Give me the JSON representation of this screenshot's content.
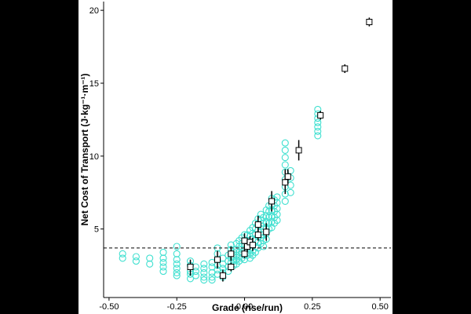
{
  "chart_data": {
    "type": "scatter",
    "xlabel": "Grade (rise/run)",
    "ylabel": "Net Cost of Transport (J·kg⁻¹·m⁻¹)",
    "xlim": [
      -0.52,
      0.54
    ],
    "ylim": [
      0.3,
      20.6
    ],
    "x_ticks": [
      -0.5,
      -0.25,
      0.0,
      0.25,
      0.5
    ],
    "x_tick_labels": [
      "-0.50",
      "-0.25",
      "0.00",
      "0.25",
      "0.50"
    ],
    "y_ticks": [
      5,
      10,
      15,
      20
    ],
    "y_tick_labels": [
      "5",
      "10",
      "15",
      "20"
    ],
    "reference_line": {
      "y": 3.7,
      "style": "dashed"
    },
    "grid": false,
    "colors": {
      "individual": "#40E0D0",
      "summary": "#000000",
      "reference_line": "#333333"
    },
    "series": [
      {
        "kind": "individual",
        "points": [
          [
            -0.45,
            3.3
          ],
          [
            -0.45,
            3.0
          ],
          [
            -0.4,
            3.1
          ],
          [
            -0.4,
            2.8
          ],
          [
            -0.35,
            3.0
          ],
          [
            -0.35,
            2.6
          ],
          [
            -0.3,
            3.4
          ],
          [
            -0.3,
            3.0
          ],
          [
            -0.3,
            2.7
          ],
          [
            -0.3,
            2.4
          ],
          [
            -0.3,
            2.1
          ],
          [
            -0.25,
            3.8
          ],
          [
            -0.25,
            3.3
          ],
          [
            -0.25,
            2.9
          ],
          [
            -0.25,
            2.6
          ],
          [
            -0.25,
            2.3
          ],
          [
            -0.25,
            2.0
          ],
          [
            -0.25,
            1.8
          ],
          [
            -0.2,
            2.8
          ],
          [
            -0.2,
            2.5
          ],
          [
            -0.2,
            2.1
          ],
          [
            -0.2,
            1.9
          ],
          [
            -0.2,
            1.6
          ],
          [
            -0.18,
            2.4
          ],
          [
            -0.18,
            2.1
          ],
          [
            -0.18,
            1.8
          ],
          [
            -0.15,
            2.6
          ],
          [
            -0.15,
            2.3
          ],
          [
            -0.15,
            2.0
          ],
          [
            -0.15,
            1.7
          ],
          [
            -0.15,
            1.5
          ],
          [
            -0.12,
            2.7
          ],
          [
            -0.12,
            2.4
          ],
          [
            -0.12,
            2.0
          ],
          [
            -0.12,
            1.7
          ],
          [
            -0.12,
            1.5
          ],
          [
            -0.1,
            3.7
          ],
          [
            -0.1,
            3.3
          ],
          [
            -0.1,
            2.9
          ],
          [
            -0.1,
            2.5
          ],
          [
            -0.1,
            2.2
          ],
          [
            -0.1,
            1.9
          ],
          [
            -0.08,
            3.0
          ],
          [
            -0.08,
            2.6
          ],
          [
            -0.08,
            2.3
          ],
          [
            -0.08,
            2.0
          ],
          [
            -0.08,
            1.7
          ],
          [
            -0.06,
            3.2
          ],
          [
            -0.06,
            2.8
          ],
          [
            -0.06,
            2.4
          ],
          [
            -0.06,
            2.1
          ],
          [
            -0.05,
            3.9
          ],
          [
            -0.05,
            3.6
          ],
          [
            -0.05,
            3.3
          ],
          [
            -0.05,
            3.0
          ],
          [
            -0.05,
            2.7
          ],
          [
            -0.05,
            2.4
          ],
          [
            -0.04,
            3.4
          ],
          [
            -0.04,
            3.1
          ],
          [
            -0.04,
            2.8
          ],
          [
            -0.04,
            2.5
          ],
          [
            -0.03,
            4.0
          ],
          [
            -0.03,
            3.6
          ],
          [
            -0.03,
            3.2
          ],
          [
            -0.03,
            2.9
          ],
          [
            -0.03,
            2.6
          ],
          [
            -0.02,
            4.2
          ],
          [
            -0.02,
            3.8
          ],
          [
            -0.02,
            3.4
          ],
          [
            -0.02,
            3.1
          ],
          [
            -0.02,
            2.8
          ],
          [
            -0.01,
            4.4
          ],
          [
            -0.01,
            4.0
          ],
          [
            -0.01,
            3.6
          ],
          [
            -0.01,
            3.3
          ],
          [
            -0.01,
            3.0
          ],
          [
            0.0,
            4.6
          ],
          [
            0.0,
            4.2
          ],
          [
            0.0,
            3.8
          ],
          [
            0.0,
            3.5
          ],
          [
            0.0,
            3.2
          ],
          [
            0.0,
            2.9
          ],
          [
            0.01,
            4.6
          ],
          [
            0.01,
            4.2
          ],
          [
            0.01,
            3.9
          ],
          [
            0.01,
            3.5
          ],
          [
            0.01,
            3.2
          ],
          [
            0.02,
            4.9
          ],
          [
            0.02,
            4.5
          ],
          [
            0.02,
            4.1
          ],
          [
            0.02,
            3.7
          ],
          [
            0.02,
            3.3
          ],
          [
            0.02,
            3.0
          ],
          [
            0.03,
            5.1
          ],
          [
            0.03,
            4.7
          ],
          [
            0.03,
            4.3
          ],
          [
            0.03,
            3.9
          ],
          [
            0.03,
            3.5
          ],
          [
            0.03,
            3.2
          ],
          [
            0.04,
            5.4
          ],
          [
            0.04,
            5.0
          ],
          [
            0.04,
            4.6
          ],
          [
            0.04,
            4.2
          ],
          [
            0.04,
            3.8
          ],
          [
            0.04,
            3.4
          ],
          [
            0.05,
            5.7
          ],
          [
            0.05,
            5.3
          ],
          [
            0.05,
            4.9
          ],
          [
            0.05,
            4.5
          ],
          [
            0.05,
            4.1
          ],
          [
            0.05,
            3.7
          ],
          [
            0.06,
            6.0
          ],
          [
            0.06,
            5.6
          ],
          [
            0.06,
            5.2
          ],
          [
            0.06,
            4.8
          ],
          [
            0.06,
            4.4
          ],
          [
            0.06,
            4.0
          ],
          [
            0.07,
            5.8
          ],
          [
            0.07,
            5.4
          ],
          [
            0.07,
            5.0
          ],
          [
            0.07,
            4.6
          ],
          [
            0.07,
            4.2
          ],
          [
            0.07,
            3.8
          ],
          [
            0.08,
            6.3
          ],
          [
            0.08,
            5.9
          ],
          [
            0.08,
            5.5
          ],
          [
            0.08,
            5.1
          ],
          [
            0.08,
            4.7
          ],
          [
            0.08,
            4.3
          ],
          [
            0.09,
            6.6
          ],
          [
            0.09,
            6.2
          ],
          [
            0.09,
            5.8
          ],
          [
            0.09,
            5.4
          ],
          [
            0.09,
            5.0
          ],
          [
            0.1,
            7.1
          ],
          [
            0.1,
            6.7
          ],
          [
            0.1,
            6.3
          ],
          [
            0.1,
            5.9
          ],
          [
            0.1,
            5.5
          ],
          [
            0.1,
            5.1
          ],
          [
            0.11,
            7.0
          ],
          [
            0.11,
            6.6
          ],
          [
            0.11,
            6.2
          ],
          [
            0.11,
            5.8
          ],
          [
            0.11,
            5.4
          ],
          [
            0.12,
            7.2
          ],
          [
            0.12,
            6.8
          ],
          [
            0.12,
            6.4
          ],
          [
            0.12,
            6.0
          ],
          [
            0.12,
            5.6
          ],
          [
            0.15,
            10.9
          ],
          [
            0.15,
            10.4
          ],
          [
            0.15,
            9.9
          ],
          [
            0.15,
            9.4
          ],
          [
            0.15,
            8.9
          ],
          [
            0.15,
            8.4
          ],
          [
            0.15,
            7.9
          ],
          [
            0.15,
            7.4
          ],
          [
            0.15,
            6.9
          ],
          [
            0.17,
            9.0
          ],
          [
            0.17,
            8.5
          ],
          [
            0.17,
            8.0
          ],
          [
            0.17,
            7.5
          ],
          [
            0.27,
            13.2
          ],
          [
            0.27,
            12.9
          ],
          [
            0.27,
            12.6
          ],
          [
            0.27,
            12.3
          ],
          [
            0.27,
            12.0
          ],
          [
            0.27,
            11.7
          ],
          [
            0.27,
            11.4
          ]
        ]
      },
      {
        "kind": "mean",
        "points": [
          {
            "x": -0.2,
            "y": 2.4,
            "lo": 1.8,
            "hi": 2.9
          },
          {
            "x": -0.1,
            "y": 2.9,
            "lo": 2.3,
            "hi": 3.5
          },
          {
            "x": -0.08,
            "y": 1.8,
            "lo": 1.4,
            "hi": 2.2
          },
          {
            "x": -0.05,
            "y": 3.3,
            "lo": 2.8,
            "hi": 3.8
          },
          {
            "x": -0.05,
            "y": 2.4,
            "lo": 2.1,
            "hi": 2.7
          },
          {
            "x": 0.0,
            "y": 4.2,
            "lo": 3.7,
            "hi": 4.7
          },
          {
            "x": 0.0,
            "y": 3.3,
            "lo": 3.0,
            "hi": 3.7
          },
          {
            "x": 0.01,
            "y": 3.8,
            "lo": 3.4,
            "hi": 4.3
          },
          {
            "x": 0.02,
            "y": 4.1,
            "lo": 3.7,
            "hi": 4.5
          },
          {
            "x": 0.03,
            "y": 3.9,
            "lo": 3.5,
            "hi": 4.4
          },
          {
            "x": 0.05,
            "y": 5.3,
            "lo": 4.8,
            "hi": 5.9
          },
          {
            "x": 0.05,
            "y": 4.6,
            "lo": 4.2,
            "hi": 5.1
          },
          {
            "x": 0.08,
            "y": 4.8,
            "lo": 4.2,
            "hi": 5.4
          },
          {
            "x": 0.1,
            "y": 6.9,
            "lo": 6.2,
            "hi": 7.6
          },
          {
            "x": 0.15,
            "y": 8.2,
            "lo": 7.4,
            "hi": 9.1
          },
          {
            "x": 0.16,
            "y": 8.6,
            "lo": 8.1,
            "hi": 9.1
          },
          {
            "x": 0.2,
            "y": 10.4,
            "lo": 9.7,
            "hi": 11.1
          },
          {
            "x": 0.28,
            "y": 12.8,
            "lo": 12.5,
            "hi": 13.1
          },
          {
            "x": 0.37,
            "y": 16.0,
            "lo": 15.7,
            "hi": 16.3
          },
          {
            "x": 0.46,
            "y": 19.2,
            "lo": 18.9,
            "hi": 19.5
          }
        ]
      }
    ]
  }
}
